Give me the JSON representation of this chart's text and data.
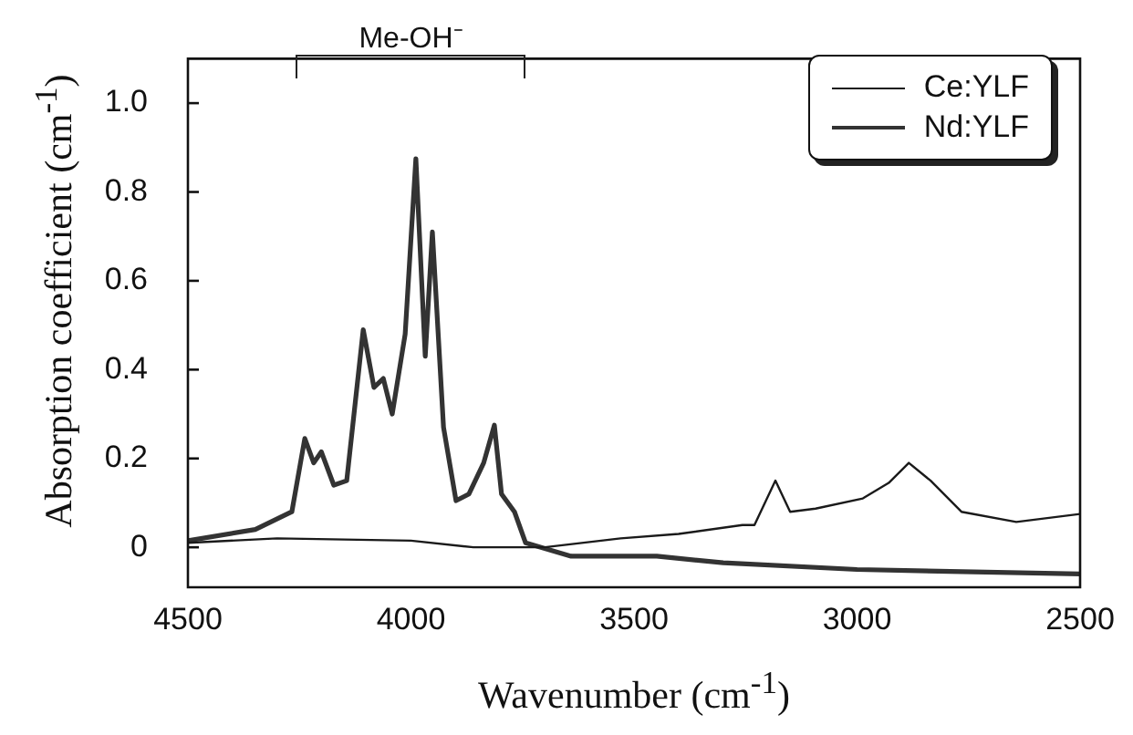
{
  "chart_data": {
    "type": "line",
    "xlabel": "Wavenumber (cm$^{-1}$)",
    "ylabel": "Absorption coefficient (cm$^{-1}$)",
    "xlim": [
      4500,
      2500
    ],
    "xticks": [
      4500,
      4000,
      3500,
      3000,
      2500
    ],
    "ylim": [
      -0.09,
      1.1
    ],
    "yticks": [
      0,
      0.2,
      0.4,
      0.6,
      0.8,
      {
        "value": 1,
        "label": "1.0"
      }
    ],
    "grid": false,
    "legend": "top right",
    "marker": "none",
    "line_style": "solid",
    "annotations": [
      "Me-OH⁻"
    ],
    "series": [
      {
        "name": "Ce:YLF",
        "color": "#1a1a1a",
        "x": [
          4500,
          4300,
          4000,
          3860,
          3700,
          3530,
          3400,
          3257,
          3230,
          3183,
          3150,
          3093,
          2987,
          2929,
          2884,
          2835,
          2766,
          2643,
          2500
        ],
        "values": [
          0.01,
          0.02,
          0.015,
          0,
          0,
          0.02,
          0.03,
          0.05,
          0.05,
          0.15,
          0.08,
          0.087,
          0.11,
          0.145,
          0.19,
          0.15,
          0.08,
          0.057,
          0.075
        ]
      },
      {
        "name": "Nd:YLF",
        "color": "#333333",
        "x": [
          4500,
          4349,
          4267,
          4238,
          4218,
          4201,
          4173,
          4144,
          4107,
          4083,
          4062,
          4042,
          4013,
          3989,
          3968,
          3952,
          3927,
          3899,
          3870,
          3837,
          3813,
          3797,
          3768,
          3743,
          3641,
          3449,
          3300,
          3000,
          2500
        ],
        "values": [
          0.015,
          0.04,
          0.08,
          0.245,
          0.19,
          0.215,
          0.14,
          0.15,
          0.49,
          0.36,
          0.38,
          0.3,
          0.48,
          0.875,
          0.43,
          0.71,
          0.27,
          0.105,
          0.12,
          0.19,
          0.275,
          0.12,
          0.08,
          0.01,
          -0.02,
          -0.02,
          -0.035,
          -0.05,
          -0.06
        ]
      }
    ]
  }
}
